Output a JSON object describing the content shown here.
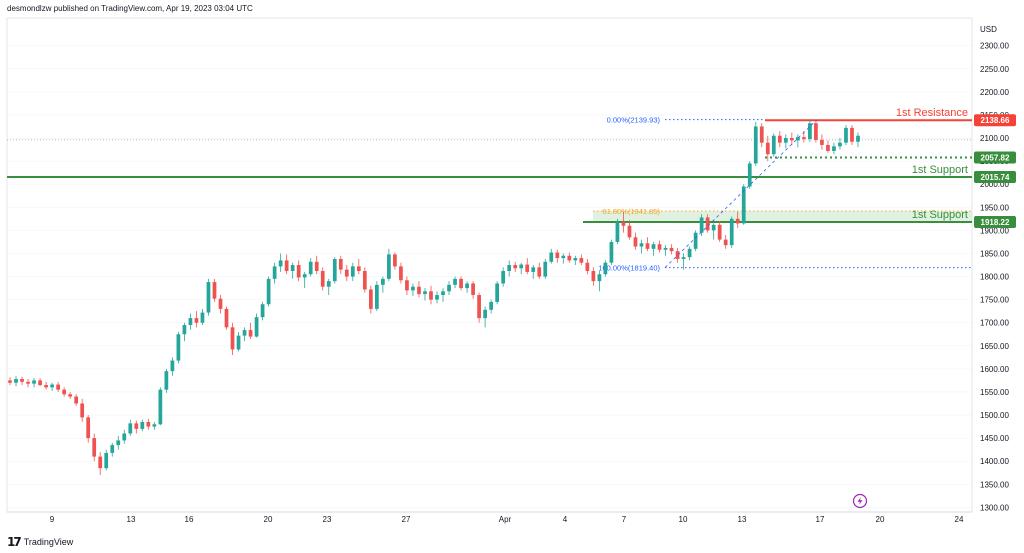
{
  "header": {
    "text": "desmondlzw published on TradingView.com, Apr 19, 2023 03:04 UTC"
  },
  "footer": {
    "brand": "TradingView",
    "logo": "17"
  },
  "colors": {
    "up": "#26a69a",
    "down": "#ef5350",
    "support": "#388e3c",
    "resistance": "#f44336",
    "fib_blue": "#2962ff",
    "fib_orange": "#f5a623",
    "zone_fill": "#c8e6c9",
    "grid": "#f0f3fa",
    "text": "#131722"
  },
  "chart_data": {
    "type": "candlestick",
    "symbol_currency": "USD",
    "ylim": [
      1290,
      2360
    ],
    "y_ticks": [
      1300,
      1350,
      1400,
      1450,
      1500,
      1550,
      1600,
      1650,
      1700,
      1750,
      1800,
      1850,
      1900,
      1950,
      2000,
      2050,
      2100,
      2150,
      2200,
      2250,
      2300
    ],
    "y_tick_labels": [
      "1300.00",
      "1350.00",
      "1400.00",
      "1450.00",
      "1500.00",
      "1550.00",
      "1600.00",
      "1650.00",
      "1700.00",
      "1750.00",
      "1800.00",
      "1850.00",
      "1900.00",
      "1950.00",
      "2000.00",
      "2050.00",
      "2100.00",
      "2150.00",
      "2200.00",
      "2250.00",
      "2300.00"
    ],
    "x_ticks": [
      "9",
      "13",
      "16",
      "20",
      "23",
      "27",
      "Apr",
      "4",
      "7",
      "10",
      "13",
      "17",
      "20",
      "24"
    ],
    "current_price": 2096,
    "levels": [
      {
        "kind": "resistance",
        "label": "1st Resistance",
        "price": 2138.66,
        "tag": "2138.66",
        "style": "solid"
      },
      {
        "kind": "support",
        "label": "",
        "price": 2057.82,
        "tag": "2057.82",
        "style": "dotted"
      },
      {
        "kind": "support",
        "label": "1st Support",
        "price": 2015.74,
        "tag": "2015.74",
        "style": "solid"
      },
      {
        "kind": "support",
        "label": "1st Support",
        "price": 1918.22,
        "tag": "1918.22",
        "style": "solid"
      }
    ],
    "fibonacci": [
      {
        "label": "0.00%(2139.93)",
        "price": 2139.93
      },
      {
        "label": "61.80%(1941.85)",
        "price": 1941.85
      },
      {
        "label": "100.00%(1819.40)",
        "price": 1819.4
      }
    ],
    "candles_ohlc": [
      [
        1575,
        1582,
        1565,
        1570
      ],
      [
        1570,
        1585,
        1562,
        1578
      ],
      [
        1578,
        1583,
        1565,
        1572
      ],
      [
        1572,
        1578,
        1560,
        1568
      ],
      [
        1568,
        1580,
        1560,
        1575
      ],
      [
        1575,
        1580,
        1562,
        1565
      ],
      [
        1565,
        1572,
        1555,
        1560
      ],
      [
        1560,
        1570,
        1552,
        1566
      ],
      [
        1566,
        1572,
        1550,
        1555
      ],
      [
        1555,
        1560,
        1540,
        1545
      ],
      [
        1545,
        1550,
        1535,
        1540
      ],
      [
        1540,
        1545,
        1520,
        1525
      ],
      [
        1525,
        1535,
        1485,
        1495
      ],
      [
        1495,
        1500,
        1440,
        1450
      ],
      [
        1450,
        1460,
        1400,
        1410
      ],
      [
        1410,
        1420,
        1370,
        1385
      ],
      [
        1385,
        1425,
        1380,
        1418
      ],
      [
        1418,
        1440,
        1410,
        1435
      ],
      [
        1435,
        1455,
        1425,
        1445
      ],
      [
        1445,
        1468,
        1438,
        1460
      ],
      [
        1460,
        1490,
        1455,
        1482
      ],
      [
        1482,
        1488,
        1460,
        1470
      ],
      [
        1470,
        1490,
        1465,
        1485
      ],
      [
        1485,
        1492,
        1468,
        1475
      ],
      [
        1475,
        1485,
        1468,
        1480
      ],
      [
        1480,
        1560,
        1478,
        1555
      ],
      [
        1555,
        1600,
        1548,
        1595
      ],
      [
        1595,
        1625,
        1585,
        1618
      ],
      [
        1618,
        1680,
        1612,
        1675
      ],
      [
        1675,
        1700,
        1660,
        1695
      ],
      [
        1695,
        1720,
        1685,
        1710
      ],
      [
        1710,
        1725,
        1690,
        1700
      ],
      [
        1700,
        1730,
        1695,
        1722
      ],
      [
        1722,
        1795,
        1715,
        1788
      ],
      [
        1788,
        1795,
        1745,
        1752
      ],
      [
        1752,
        1760,
        1720,
        1730
      ],
      [
        1730,
        1735,
        1685,
        1690
      ],
      [
        1690,
        1700,
        1630,
        1642
      ],
      [
        1642,
        1680,
        1638,
        1672
      ],
      [
        1672,
        1690,
        1660,
        1684
      ],
      [
        1684,
        1700,
        1665,
        1670
      ],
      [
        1670,
        1720,
        1668,
        1712
      ],
      [
        1712,
        1745,
        1705,
        1740
      ],
      [
        1740,
        1800,
        1735,
        1795
      ],
      [
        1795,
        1830,
        1785,
        1822
      ],
      [
        1822,
        1850,
        1810,
        1835
      ],
      [
        1835,
        1848,
        1805,
        1812
      ],
      [
        1812,
        1830,
        1795,
        1825
      ],
      [
        1825,
        1835,
        1790,
        1798
      ],
      [
        1798,
        1810,
        1775,
        1805
      ],
      [
        1805,
        1840,
        1800,
        1832
      ],
      [
        1832,
        1845,
        1805,
        1812
      ],
      [
        1812,
        1820,
        1770,
        1778
      ],
      [
        1778,
        1795,
        1760,
        1790
      ],
      [
        1790,
        1842,
        1785,
        1838
      ],
      [
        1838,
        1845,
        1805,
        1815
      ],
      [
        1815,
        1825,
        1790,
        1800
      ],
      [
        1800,
        1830,
        1790,
        1822
      ],
      [
        1822,
        1838,
        1805,
        1812
      ],
      [
        1812,
        1820,
        1765,
        1772
      ],
      [
        1772,
        1780,
        1720,
        1730
      ],
      [
        1730,
        1790,
        1725,
        1782
      ],
      [
        1782,
        1800,
        1765,
        1795
      ],
      [
        1795,
        1860,
        1790,
        1848
      ],
      [
        1848,
        1852,
        1815,
        1822
      ],
      [
        1822,
        1830,
        1785,
        1792
      ],
      [
        1792,
        1800,
        1760,
        1770
      ],
      [
        1770,
        1785,
        1758,
        1778
      ],
      [
        1778,
        1790,
        1755,
        1762
      ],
      [
        1762,
        1775,
        1748,
        1768
      ],
      [
        1768,
        1780,
        1740,
        1750
      ],
      [
        1750,
        1768,
        1742,
        1760
      ],
      [
        1760,
        1775,
        1745,
        1768
      ],
      [
        1768,
        1790,
        1760,
        1782
      ],
      [
        1782,
        1800,
        1775,
        1795
      ],
      [
        1795,
        1800,
        1770,
        1775
      ],
      [
        1775,
        1790,
        1765,
        1785
      ],
      [
        1785,
        1790,
        1752,
        1760
      ],
      [
        1760,
        1765,
        1700,
        1710
      ],
      [
        1710,
        1735,
        1690,
        1728
      ],
      [
        1728,
        1750,
        1720,
        1745
      ],
      [
        1745,
        1790,
        1740,
        1785
      ],
      [
        1785,
        1820,
        1778,
        1812
      ],
      [
        1812,
        1835,
        1800,
        1825
      ],
      [
        1825,
        1832,
        1810,
        1818
      ],
      [
        1818,
        1830,
        1805,
        1826
      ],
      [
        1826,
        1840,
        1805,
        1810
      ],
      [
        1810,
        1825,
        1795,
        1820
      ],
      [
        1820,
        1830,
        1795,
        1800
      ],
      [
        1800,
        1838,
        1795,
        1832
      ],
      [
        1832,
        1860,
        1828,
        1852
      ],
      [
        1852,
        1858,
        1830,
        1840
      ],
      [
        1840,
        1850,
        1828,
        1845
      ],
      [
        1845,
        1852,
        1830,
        1835
      ],
      [
        1835,
        1845,
        1825,
        1840
      ],
      [
        1840,
        1848,
        1825,
        1830
      ],
      [
        1830,
        1838,
        1805,
        1812
      ],
      [
        1812,
        1820,
        1780,
        1790
      ],
      [
        1790,
        1812,
        1768,
        1805
      ],
      [
        1805,
        1835,
        1800,
        1830
      ],
      [
        1830,
        1880,
        1825,
        1875
      ],
      [
        1875,
        1925,
        1870,
        1918
      ],
      [
        1918,
        1940,
        1895,
        1910
      ],
      [
        1910,
        1922,
        1880,
        1885
      ],
      [
        1885,
        1895,
        1858,
        1865
      ],
      [
        1865,
        1880,
        1850,
        1872
      ],
      [
        1872,
        1885,
        1855,
        1860
      ],
      [
        1860,
        1875,
        1845,
        1870
      ],
      [
        1870,
        1878,
        1852,
        1858
      ],
      [
        1858,
        1868,
        1845,
        1862
      ],
      [
        1862,
        1870,
        1848,
        1855
      ],
      [
        1855,
        1862,
        1830,
        1838
      ],
      [
        1838,
        1850,
        1815,
        1842
      ],
      [
        1842,
        1865,
        1835,
        1860
      ],
      [
        1860,
        1900,
        1855,
        1895
      ],
      [
        1895,
        1935,
        1888,
        1928
      ],
      [
        1928,
        1935,
        1895,
        1900
      ],
      [
        1900,
        1915,
        1880,
        1912
      ],
      [
        1912,
        1920,
        1875,
        1880
      ],
      [
        1880,
        1890,
        1860,
        1868
      ],
      [
        1868,
        1930,
        1862,
        1925
      ],
      [
        1925,
        1940,
        1905,
        1915
      ],
      [
        1915,
        2000,
        1912,
        1995
      ],
      [
        1995,
        2050,
        1990,
        2045
      ],
      [
        2045,
        2135,
        2040,
        2125
      ],
      [
        2125,
        2132,
        2080,
        2090
      ],
      [
        2090,
        2105,
        2050,
        2065
      ],
      [
        2065,
        2110,
        2060,
        2105
      ],
      [
        2105,
        2115,
        2080,
        2090
      ],
      [
        2090,
        2108,
        2078,
        2100
      ],
      [
        2100,
        2112,
        2085,
        2095
      ],
      [
        2095,
        2108,
        2080,
        2102
      ],
      [
        2102,
        2115,
        2090,
        2098
      ],
      [
        2098,
        2140,
        2092,
        2132
      ],
      [
        2132,
        2138,
        2090,
        2096
      ],
      [
        2096,
        2108,
        2075,
        2085
      ],
      [
        2085,
        2095,
        2068,
        2072
      ],
      [
        2072,
        2090,
        2065,
        2082
      ],
      [
        2082,
        2100,
        2075,
        2090
      ],
      [
        2090,
        2128,
        2085,
        2122
      ],
      [
        2122,
        2128,
        2085,
        2092
      ],
      [
        2092,
        2112,
        2080,
        2105
      ]
    ]
  }
}
